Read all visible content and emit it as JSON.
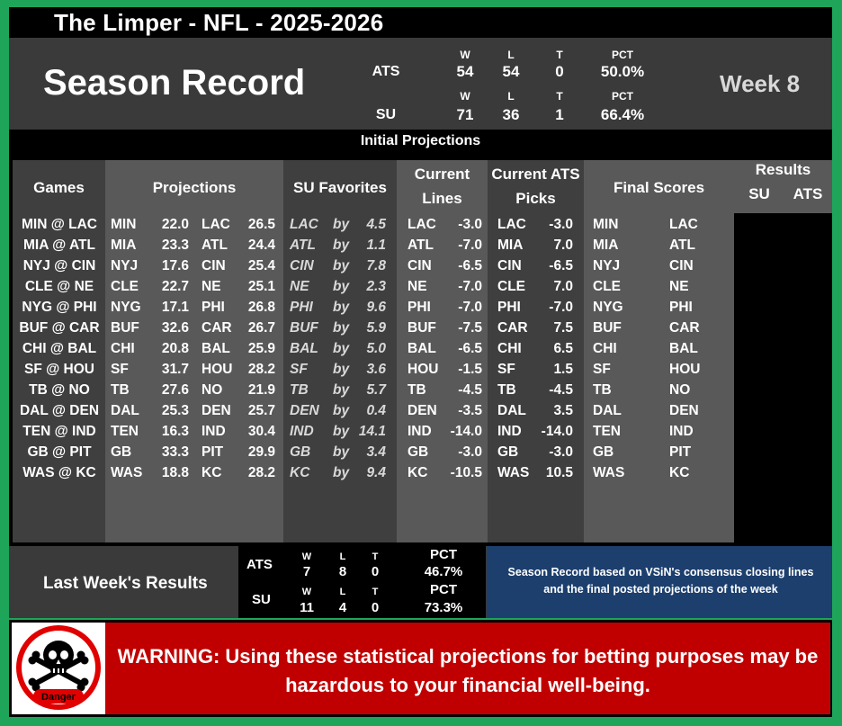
{
  "header": {
    "title": "The Limper - NFL - 2025-2026"
  },
  "season": {
    "title": "Season Record",
    "week": "Week 8",
    "ats": {
      "label": "ATS",
      "w_h": "W",
      "l_h": "L",
      "t_h": "T",
      "pct_h": "PCT",
      "w": "54",
      "l": "54",
      "t": "0",
      "pct": "50.0%"
    },
    "su": {
      "label": "SU",
      "w_h": "W",
      "l_h": "L",
      "t_h": "T",
      "pct_h": "PCT",
      "w": "71",
      "l": "36",
      "t": "1",
      "pct": "66.4%"
    }
  },
  "initial_projections": "Initial Projections",
  "columns": {
    "games": "Games",
    "projections": "Projections",
    "su_favorites": "SU Favorites",
    "current_lines_1": "Current",
    "current_lines_2": "Lines",
    "ats_picks_1": "Current ATS",
    "ats_picks_2": "Picks",
    "final_scores": "Final Scores",
    "results": "Results",
    "results_su": "SU",
    "results_ats": "ATS"
  },
  "games": [
    {
      "game": "MIN @ LAC",
      "p1t": "MIN",
      "p1s": "22.0",
      "p2t": "LAC",
      "p2s": "26.5",
      "fav": "LAC",
      "by": "by",
      "margin": "4.5",
      "lt": "LAC",
      "lv": "-3.0",
      "pt": "LAC",
      "pv": "-3.0",
      "f1": "MIN",
      "f2": "LAC"
    },
    {
      "game": "MIA @ ATL",
      "p1t": "MIA",
      "p1s": "23.3",
      "p2t": "ATL",
      "p2s": "24.4",
      "fav": "ATL",
      "by": "by",
      "margin": "1.1",
      "lt": "ATL",
      "lv": "-7.0",
      "pt": "MIA",
      "pv": "7.0",
      "f1": "MIA",
      "f2": "ATL"
    },
    {
      "game": "NYJ @ CIN",
      "p1t": "NYJ",
      "p1s": "17.6",
      "p2t": "CIN",
      "p2s": "25.4",
      "fav": "CIN",
      "by": "by",
      "margin": "7.8",
      "lt": "CIN",
      "lv": "-6.5",
      "pt": "CIN",
      "pv": "-6.5",
      "f1": "NYJ",
      "f2": "CIN"
    },
    {
      "game": "CLE @ NE",
      "p1t": "CLE",
      "p1s": "22.7",
      "p2t": "NE",
      "p2s": "25.1",
      "fav": "NE",
      "by": "by",
      "margin": "2.3",
      "lt": "NE",
      "lv": "-7.0",
      "pt": "CLE",
      "pv": "7.0",
      "f1": "CLE",
      "f2": "NE"
    },
    {
      "game": "NYG @ PHI",
      "p1t": "NYG",
      "p1s": "17.1",
      "p2t": "PHI",
      "p2s": "26.8",
      "fav": "PHI",
      "by": "by",
      "margin": "9.6",
      "lt": "PHI",
      "lv": "-7.0",
      "pt": "PHI",
      "pv": "-7.0",
      "f1": "NYG",
      "f2": "PHI"
    },
    {
      "game": "BUF @ CAR",
      "p1t": "BUF",
      "p1s": "32.6",
      "p2t": "CAR",
      "p2s": "26.7",
      "fav": "BUF",
      "by": "by",
      "margin": "5.9",
      "lt": "BUF",
      "lv": "-7.5",
      "pt": "CAR",
      "pv": "7.5",
      "f1": "BUF",
      "f2": "CAR"
    },
    {
      "game": "CHI @ BAL",
      "p1t": "CHI",
      "p1s": "20.8",
      "p2t": "BAL",
      "p2s": "25.9",
      "fav": "BAL",
      "by": "by",
      "margin": "5.0",
      "lt": "BAL",
      "lv": "-6.5",
      "pt": "CHI",
      "pv": "6.5",
      "f1": "CHI",
      "f2": "BAL"
    },
    {
      "game": "SF @ HOU",
      "p1t": "SF",
      "p1s": "31.7",
      "p2t": "HOU",
      "p2s": "28.2",
      "fav": "SF",
      "by": "by",
      "margin": "3.6",
      "lt": "HOU",
      "lv": "-1.5",
      "pt": "SF",
      "pv": "1.5",
      "f1": "SF",
      "f2": "HOU"
    },
    {
      "game": "TB @ NO",
      "p1t": "TB",
      "p1s": "27.6",
      "p2t": "NO",
      "p2s": "21.9",
      "fav": "TB",
      "by": "by",
      "margin": "5.7",
      "lt": "TB",
      "lv": "-4.5",
      "pt": "TB",
      "pv": "-4.5",
      "f1": "TB",
      "f2": "NO"
    },
    {
      "game": "DAL @ DEN",
      "p1t": "DAL",
      "p1s": "25.3",
      "p2t": "DEN",
      "p2s": "25.7",
      "fav": "DEN",
      "by": "by",
      "margin": "0.4",
      "lt": "DEN",
      "lv": "-3.5",
      "pt": "DAL",
      "pv": "3.5",
      "f1": "DAL",
      "f2": "DEN"
    },
    {
      "game": "TEN @ IND",
      "p1t": "TEN",
      "p1s": "16.3",
      "p2t": "IND",
      "p2s": "30.4",
      "fav": "IND",
      "by": "by",
      "margin": "14.1",
      "lt": "IND",
      "lv": "-14.0",
      "pt": "IND",
      "pv": "-14.0",
      "f1": "TEN",
      "f2": "IND"
    },
    {
      "game": "GB @ PIT",
      "p1t": "GB",
      "p1s": "33.3",
      "p2t": "PIT",
      "p2s": "29.9",
      "fav": "GB",
      "by": "by",
      "margin": "3.4",
      "lt": "GB",
      "lv": "-3.0",
      "pt": "GB",
      "pv": "-3.0",
      "f1": "GB",
      "f2": "PIT"
    },
    {
      "game": "WAS @ KC",
      "p1t": "WAS",
      "p1s": "18.8",
      "p2t": "KC",
      "p2s": "28.2",
      "fav": "KC",
      "by": "by",
      "margin": "9.4",
      "lt": "KC",
      "lv": "-10.5",
      "pt": "WAS",
      "pv": "10.5",
      "f1": "WAS",
      "f2": "KC"
    }
  ],
  "last_week": {
    "title": "Last Week's Results",
    "ats": {
      "label": "ATS",
      "w_h": "W",
      "l_h": "L",
      "t_h": "T",
      "pct_h": "PCT",
      "w": "7",
      "l": "8",
      "t": "0",
      "pct": "46.7%"
    },
    "su": {
      "label": "SU",
      "w_h": "W",
      "l_h": "L",
      "t_h": "T",
      "pct_h": "PCT",
      "w": "11",
      "l": "4",
      "t": "0",
      "pct": "73.3%"
    },
    "note": "Season Record based on VSiN's consensus closing lines and the final posted projections of the week"
  },
  "warning": {
    "icon_label": "Danger",
    "icon": "skull-crossbones-icon",
    "text": "WARNING: Using these statistical projections for betting purposes may be hazardous to your financial well-being."
  }
}
